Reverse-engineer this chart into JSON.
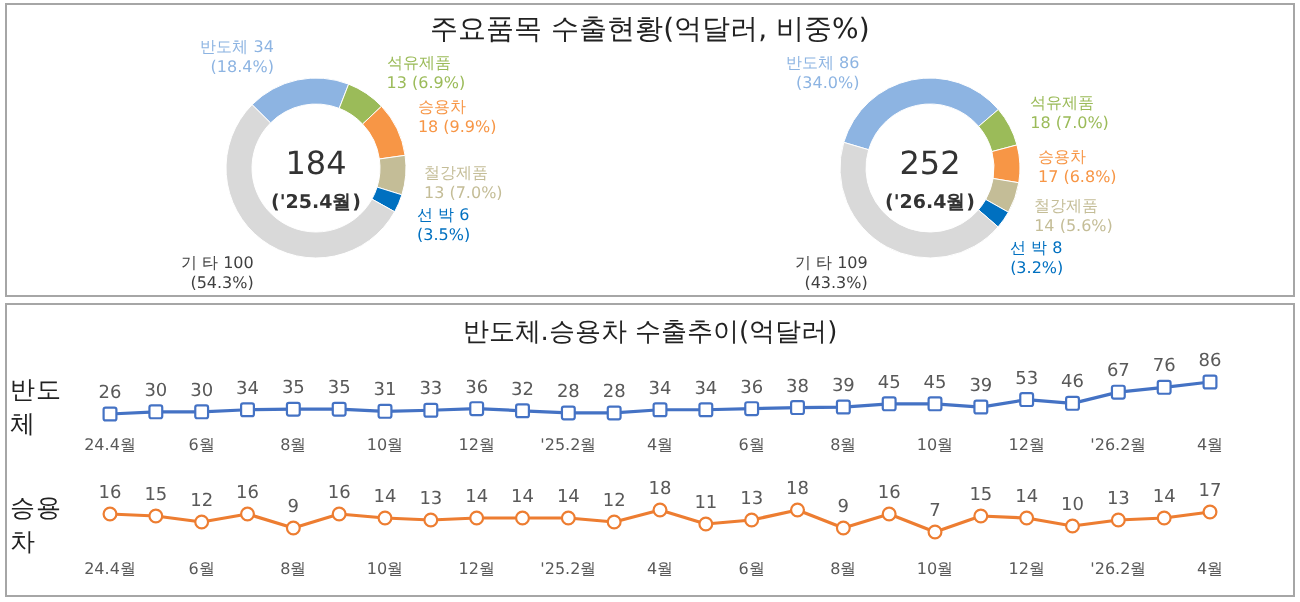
{
  "chart_data": [
    {
      "type": "donut",
      "title": "주요품목 수출현황(억달러, 비중%)",
      "categories": [
        "반도체",
        "석유제품",
        "승용차",
        "철강제품",
        "선 박",
        "기 타"
      ],
      "values": [
        34,
        13,
        18,
        13,
        6,
        100
      ],
      "value_labels": [
        "34 (18.4%)",
        "13 (6.9%)",
        "18 (9.9%)",
        "13 (7.0%)",
        "6 (3.5%)",
        "100 (54.3%)"
      ],
      "colors": [
        "#8db4e2",
        "#9bbb59",
        "#f79646",
        "#c4bd97",
        "#0070c0",
        "#d9d9d9"
      ],
      "annotations": [
        "184",
        "('25.4월)"
      ]
    },
    {
      "type": "donut",
      "categories": [
        "반도체",
        "석유제품",
        "승용차",
        "철강제품",
        "선 박",
        "기 타"
      ],
      "values": [
        86,
        18,
        17,
        14,
        8,
        109
      ],
      "value_labels": [
        "86 (34.0%)",
        "18 (7.0%)",
        "17 (6.8%)",
        "14 (5.6%)",
        "8 (3.2%)",
        "109 (43.3%)"
      ],
      "colors": [
        "#8db4e2",
        "#9bbb59",
        "#f79646",
        "#c4bd97",
        "#0070c0",
        "#d9d9d9"
      ],
      "annotations": [
        "252",
        "('26.4월)"
      ]
    },
    {
      "type": "line",
      "title": "반도체.승용차 수출추이(억달러)",
      "ylabel": "반도체",
      "categories": [
        "24.4월",
        null,
        "6월",
        null,
        "8월",
        null,
        "10월",
        null,
        "12월",
        null,
        "'25.2월",
        null,
        "4월",
        null,
        "6월",
        null,
        "8월",
        null,
        "10월",
        null,
        "12월",
        null,
        "'26.2월",
        null,
        "4월"
      ],
      "series": [
        {
          "color": "#4472c4",
          "values": [
            26,
            30,
            30,
            34,
            35,
            35,
            31,
            33,
            36,
            32,
            28,
            28,
            34,
            34,
            36,
            38,
            39,
            45,
            45,
            39,
            53,
            46,
            67,
            76,
            86
          ]
        }
      ],
      "marker": "square",
      "data_labels": true
    },
    {
      "type": "line",
      "ylabel": "승용차",
      "categories": [
        "24.4월",
        null,
        "6월",
        null,
        "8월",
        null,
        "10월",
        null,
        "12월",
        null,
        "'25.2월",
        null,
        "4월",
        null,
        "6월",
        null,
        "8월",
        null,
        "10월",
        null,
        "12월",
        null,
        "'26.2월",
        null,
        "4월"
      ],
      "series": [
        {
          "color": "#ed7d31",
          "values": [
            16,
            15,
            12,
            16,
            9,
            16,
            14,
            13,
            14,
            14,
            14,
            12,
            18,
            11,
            13,
            18,
            9,
            16,
            7,
            15,
            14,
            10,
            13,
            14,
            17
          ]
        }
      ],
      "marker": "circle",
      "data_labels": true
    }
  ]
}
